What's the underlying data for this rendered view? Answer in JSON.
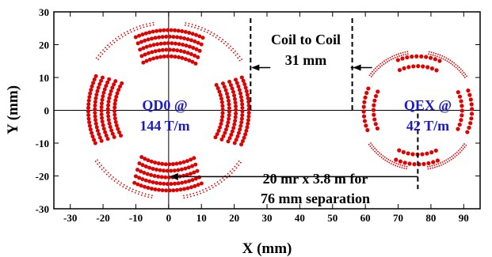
{
  "chart_data": {
    "type": "scatter",
    "xlabel": "X (mm)",
    "ylabel": "Y (mm)",
    "xlim": [
      -35,
      95
    ],
    "ylim": [
      -30,
      30
    ],
    "xticks": [
      -30,
      -20,
      -10,
      0,
      10,
      20,
      30,
      40,
      50,
      60,
      70,
      80,
      90
    ],
    "yticks": [
      -30,
      -20,
      -10,
      0,
      10,
      20,
      30
    ],
    "grid": false,
    "point_color": "#e00000",
    "magnets": [
      {
        "label_line1": "QD0 @",
        "label_line2": "144 T/m",
        "center": [
          0,
          0
        ],
        "coil_inner_radius": 16.5,
        "coil_outer_radius": 24.5,
        "coil_layers": 5,
        "coil_half_angle_deg": 30,
        "yoke_radius": 26.5,
        "yoke_segments": [
          [
            35,
            80
          ],
          [
            100,
            145
          ],
          [
            215,
            260
          ],
          [
            280,
            325
          ]
        ]
      },
      {
        "label_line1": "QEX @",
        "label_line2": "42 T/m",
        "center": [
          76,
          0
        ],
        "coil_inner_radius": 13.5,
        "coil_outer_radius": 16.5,
        "coil_layers": 2,
        "coil_half_angle_deg": 25,
        "yoke_radius": 17.5,
        "yoke_segments": [
          [
            35,
            80
          ],
          [
            100,
            145
          ],
          [
            215,
            260
          ],
          [
            280,
            325
          ]
        ]
      }
    ],
    "annotations": {
      "coil_to_coil_line1": "Coil to Coil",
      "coil_to_coil_line2": "31 mm",
      "coil_left_x": 25,
      "coil_right_x": 56,
      "separation_line1": "20 mr x 3.8 m for",
      "separation_line2": "76 mm separation",
      "separation_x": 76,
      "color": "#1a1acc"
    }
  }
}
